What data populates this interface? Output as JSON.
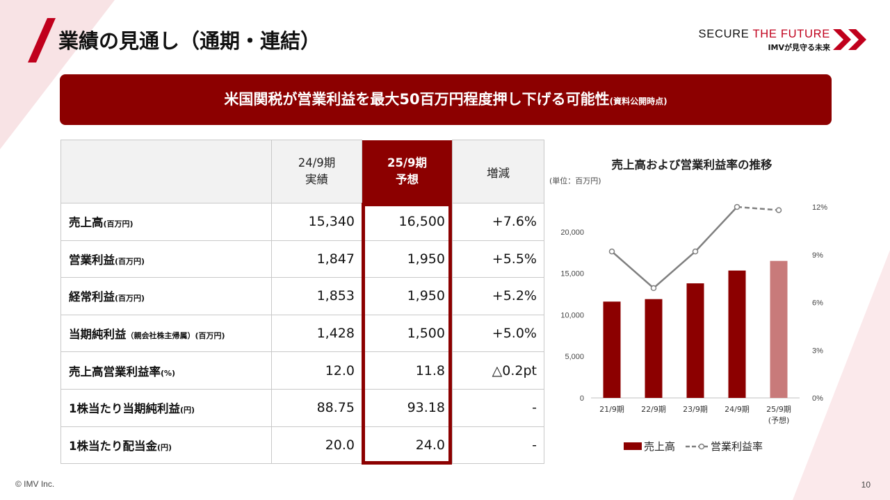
{
  "header": {
    "title": "業績の見通し（通期・連結）",
    "brand_prefix": "SECURE ",
    "brand_accent": "THE FUTURE",
    "brand_sub": "IMVが見守る未来"
  },
  "banner": {
    "text": "米国関税が営業利益を最大50百万円程度押し下げる可能性",
    "note": "(資料公開時点)"
  },
  "table": {
    "headers": [
      {
        "line1": "24/9期",
        "line2": "実績"
      },
      {
        "line1": "25/9期",
        "line2": "予想"
      },
      {
        "line1": "増減",
        "line2": ""
      }
    ],
    "rows": [
      {
        "label": "売上高",
        "unit": "(百万円)",
        "actual": "15,340",
        "forecast": "16,500",
        "change": "+7.6%"
      },
      {
        "label": "営業利益",
        "unit": "(百万円)",
        "actual": "1,847",
        "forecast": "1,950",
        "change": "+5.5%"
      },
      {
        "label": "経常利益",
        "unit": "(百万円)",
        "actual": "1,853",
        "forecast": "1,950",
        "change": "+5.2%"
      },
      {
        "label": "当期純利益",
        "unit": "（親会社株主帰属）(百万円)",
        "actual": "1,428",
        "forecast": "1,500",
        "change": "+5.0%"
      },
      {
        "label": "売上高営業利益率",
        "unit": "(%)",
        "actual": "12.0",
        "forecast": "11.8",
        "change": "△0.2pt"
      },
      {
        "label": "1株当たり当期純利益",
        "unit": "(円)",
        "actual": "88.75",
        "forecast": "93.18",
        "change": "-"
      },
      {
        "label": "1株当たり配当金",
        "unit": "(円)",
        "actual": "20.0",
        "forecast": "24.0",
        "change": "-"
      }
    ]
  },
  "chart_data": {
    "type": "bar",
    "title": "売上高および営業利益率の推移",
    "unit": "(単位：百万円)",
    "categories": [
      "21/9期",
      "22/9期",
      "23/9期",
      "24/9期",
      "25/9期"
    ],
    "category_notes": [
      "",
      "",
      "",
      "",
      "(予想)"
    ],
    "series": [
      {
        "name": "売上高",
        "axis": "left",
        "type": "bar",
        "values": [
          11600,
          11900,
          13800,
          15340,
          16500
        ],
        "forecast_index": 4
      },
      {
        "name": "営業利益率",
        "axis": "right",
        "type": "line",
        "values": [
          9.2,
          6.9,
          9.2,
          12.0,
          11.8
        ],
        "dashed_from_index": 3
      }
    ],
    "y_left": {
      "min": 0,
      "max": 23000,
      "ticks": [
        0,
        5000,
        10000,
        15000,
        20000
      ],
      "tick_labels": [
        "0",
        "5,000",
        "10,000",
        "15,000",
        "20,000"
      ]
    },
    "y_right": {
      "min": 0,
      "max": 12,
      "ticks": [
        0,
        3,
        6,
        9,
        12
      ],
      "tick_labels": [
        "0%",
        "3%",
        "6%",
        "9%",
        "12%"
      ]
    },
    "colors": {
      "bar": "#8c0000",
      "bar_forecast": "#c87a7a",
      "line": "#7f7f7f",
      "axis": "#bfbfbf"
    },
    "legend_position": "bottom"
  },
  "footer": {
    "copyright": "© IMV Inc.",
    "page": "10"
  }
}
